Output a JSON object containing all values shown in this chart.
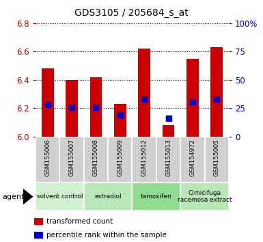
{
  "title": "GDS3105 / 205684_s_at",
  "samples": [
    "GSM155006",
    "GSM155007",
    "GSM155008",
    "GSM155009",
    "GSM155012",
    "GSM155013",
    "GSM154972",
    "GSM155005"
  ],
  "transformed_counts": [
    6.48,
    6.4,
    6.42,
    6.23,
    6.62,
    6.08,
    6.55,
    6.63
  ],
  "percentile_ranks": [
    6.225,
    6.205,
    6.205,
    6.155,
    6.265,
    6.13,
    6.245,
    6.265
  ],
  "y_min": 6.0,
  "y_max": 6.8,
  "y_ticks": [
    6.0,
    6.2,
    6.4,
    6.6,
    6.8
  ],
  "y2_ticks": [
    0,
    25,
    50,
    75,
    100
  ],
  "y2_labels": [
    "0",
    "25",
    "50",
    "75",
    "100%"
  ],
  "groups": [
    {
      "label": "solvent control",
      "start": 0,
      "end": 2,
      "color": "#d0f0d0"
    },
    {
      "label": "estradiol",
      "start": 2,
      "end": 4,
      "color": "#b8e8b8"
    },
    {
      "label": "tamoxifen",
      "start": 4,
      "end": 6,
      "color": "#90dc90"
    },
    {
      "label": "Cimicifuga\nracemosa extract",
      "start": 6,
      "end": 8,
      "color": "#b8e8b8"
    }
  ],
  "bar_color": "#cc0000",
  "dot_color": "#0000cc",
  "bar_width": 0.5,
  "dot_size": 30,
  "background_color": "#ffffff",
  "plot_bg_color": "#ffffff",
  "grid_color": "#000000",
  "tick_color_left": "#cc0000",
  "tick_color_right": "#0000cc",
  "legend_red_label": "transformed count",
  "legend_blue_label": "percentile rank within the sample",
  "agent_label": "agent",
  "sample_box_color": "#d0d0d0"
}
